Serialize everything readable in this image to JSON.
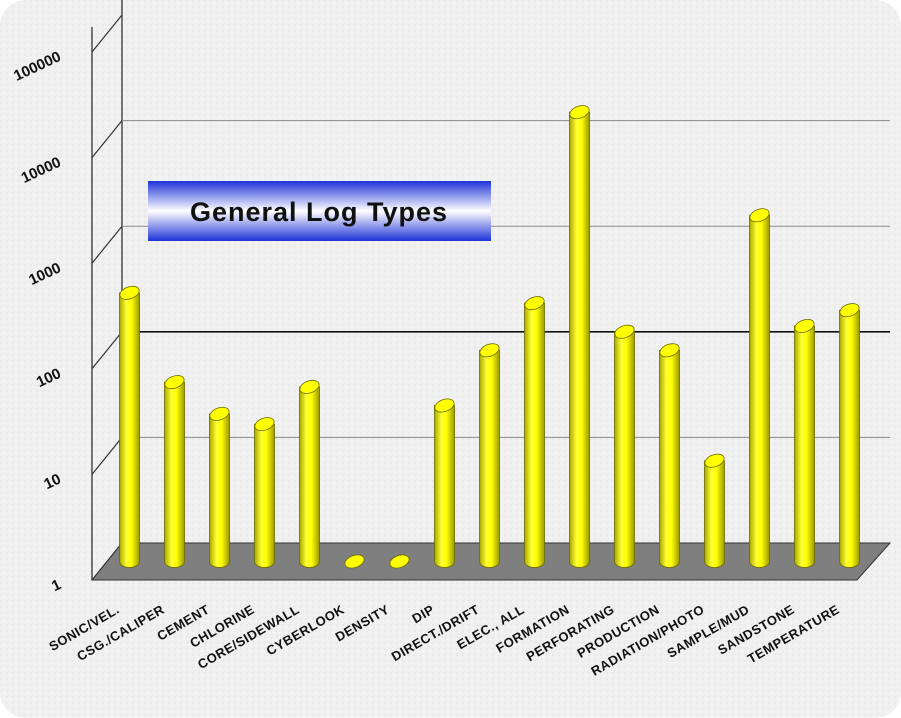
{
  "chart_data": {
    "type": "bar",
    "title": "General Log Types",
    "y_scale": "log",
    "ylim": [
      1,
      100000
    ],
    "y_ticks": [
      "1",
      "10",
      "100",
      "1000",
      "10000",
      "100000"
    ],
    "grid": true,
    "categories": [
      "SONIC/VEL.",
      "CSG./CALIPER",
      "CEMENT",
      "CHLORINE",
      "CORE/SIDEWALL",
      "CYBERLOOK",
      "DENSITY",
      "DIP",
      "DIRECT./DRIFT",
      "ELEC., ALL",
      "FORMATION",
      "PERFORATING",
      "PRODUCTION",
      "RADIATION/PHOTO",
      "SAMPLE/MUD",
      "SANDSTONE",
      "TEMPERATURE"
    ],
    "values": [
      350,
      50,
      25,
      20,
      45,
      1,
      1,
      30,
      100,
      280,
      18000,
      150,
      100,
      9,
      1900,
      170,
      240
    ],
    "colors": {
      "bar": "#ffff00",
      "bar_dark": "#b8b800",
      "floor": "#7f7f7f",
      "title_band": "#3a4fe0"
    }
  }
}
